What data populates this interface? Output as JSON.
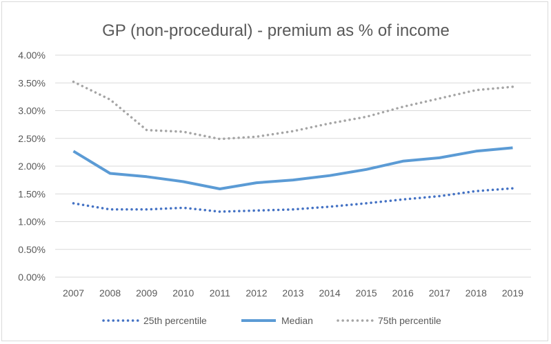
{
  "chart_data": {
    "type": "line",
    "title": "GP (non-procedural) - premium as % of income",
    "xlabel": "",
    "ylabel": "",
    "categories": [
      "2007",
      "2008",
      "2009",
      "2010",
      "2011",
      "2012",
      "2013",
      "2014",
      "2015",
      "2016",
      "2017",
      "2018",
      "2019"
    ],
    "ylim": [
      0,
      4.0
    ],
    "yticks": [
      0,
      0.5,
      1.0,
      1.5,
      2.0,
      2.5,
      3.0,
      3.5,
      4.0
    ],
    "ytick_labels": [
      "0.00%",
      "0.50%",
      "1.00%",
      "1.50%",
      "2.00%",
      "2.50%",
      "3.00%",
      "3.50%",
      "4.00%"
    ],
    "grid": true,
    "legend_position": "bottom",
    "series": [
      {
        "name": "25th percentile",
        "values": [
          1.33,
          1.22,
          1.22,
          1.25,
          1.18,
          1.2,
          1.22,
          1.27,
          1.33,
          1.4,
          1.46,
          1.55,
          1.6
        ],
        "color": "#4472c4",
        "style": "dotted"
      },
      {
        "name": "Median",
        "values": [
          2.27,
          1.87,
          1.81,
          1.72,
          1.59,
          1.7,
          1.75,
          1.83,
          1.94,
          2.09,
          2.15,
          2.27,
          2.33
        ],
        "color": "#5b9bd5",
        "style": "solid"
      },
      {
        "name": "75th percentile",
        "values": [
          3.52,
          3.2,
          2.65,
          2.62,
          2.49,
          2.53,
          2.63,
          2.77,
          2.89,
          3.07,
          3.22,
          3.37,
          3.43
        ],
        "color": "#a5a5a5",
        "style": "dotted"
      }
    ]
  },
  "colors": {
    "grid": "#d9d9d9",
    "text": "#595959"
  }
}
